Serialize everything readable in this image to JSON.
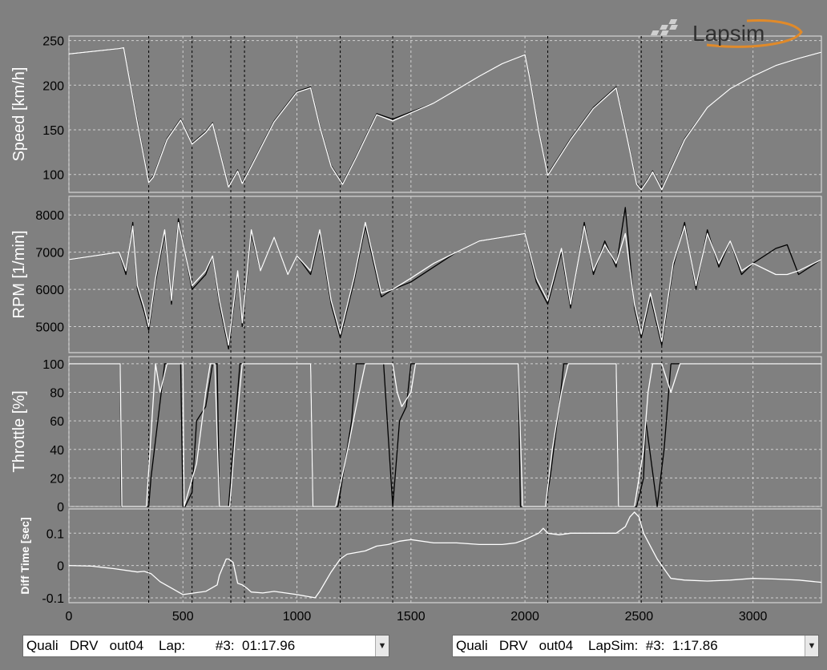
{
  "logo": {
    "text": "Lapsim"
  },
  "chart_data": {
    "type": "line",
    "xlim": [
      0,
      3300
    ],
    "xticks": [
      0,
      500,
      1000,
      1500,
      2000,
      2500,
      3000
    ],
    "vlines": [
      350,
      540,
      710,
      770,
      1190,
      1420,
      2100,
      2510,
      2600
    ],
    "panels": [
      {
        "ylabel": "Speed [km/h]",
        "ylim": [
          80,
          255
        ],
        "yticks": [
          100,
          150,
          200,
          250
        ],
        "series": [
          {
            "color": "#000000",
            "x": [
              0,
              220,
              240,
              300,
              350,
              370,
              430,
              490,
              540,
              600,
              630,
              700,
              740,
              760,
              800,
              900,
              1000,
              1060,
              1100,
              1150,
              1200,
              1260,
              1350,
              1420,
              1500,
              1600,
              1700,
              1800,
              1900,
              2000,
              2020,
              2060,
              2100,
              2200,
              2300,
              2400,
              2450,
              2490,
              2510,
              2540,
              2560,
              2600,
              2700,
              2800,
              2900,
              3000,
              3100,
              3200,
              3300
            ],
            "y": [
              235,
              241,
              242,
              160,
              92,
              98,
              140,
              162,
              135,
              148,
              158,
              87,
              105,
              91,
              110,
              160,
              193,
              198,
              155,
              110,
              90,
              120,
              168,
              162,
              170,
              180,
              195,
              210,
              224,
              234,
              210,
              150,
              100,
              140,
              175,
              198,
              140,
              90,
              84,
              95,
              104,
              84,
              140,
              175,
              196,
              210,
              222,
              230,
              237
            ]
          },
          {
            "color": "#ffffff",
            "x": [
              0,
              220,
              240,
              300,
              350,
              370,
              430,
              490,
              540,
              600,
              630,
              700,
              740,
              760,
              800,
              900,
              1000,
              1060,
              1100,
              1150,
              1200,
              1260,
              1350,
              1420,
              1500,
              1600,
              1700,
              1800,
              1900,
              2000,
              2020,
              2060,
              2100,
              2200,
              2300,
              2400,
              2450,
              2490,
              2510,
              2540,
              2560,
              2600,
              2700,
              2800,
              2900,
              3000,
              3100,
              3200,
              3300
            ],
            "y": [
              235,
              241,
              242,
              158,
              91,
              97,
              139,
              161,
              134,
              147,
              157,
              86,
              104,
              90,
              109,
              159,
              192,
              197,
              154,
              109,
              89,
              119,
              167,
              160,
              169,
              180,
              195,
              210,
              224,
              234,
              209,
              149,
              99,
              139,
              174,
              197,
              139,
              89,
              83,
              94,
              103,
              83,
              139,
              175,
              196,
              210,
              222,
              230,
              237
            ]
          }
        ]
      },
      {
        "ylabel": "RPM [1/min]",
        "ylim": [
          4300,
          8500
        ],
        "yticks": [
          5000,
          6000,
          7000,
          8000
        ],
        "series": [
          {
            "color": "#000000",
            "x": [
              0,
              220,
              250,
              280,
              300,
              330,
              350,
              380,
              420,
              450,
              480,
              540,
              600,
              630,
              660,
              700,
              740,
              760,
              800,
              840,
              900,
              960,
              1000,
              1060,
              1100,
              1150,
              1190,
              1250,
              1300,
              1370,
              1420,
              1500,
              1600,
              1700,
              1800,
              1900,
              2000,
              2050,
              2100,
              2160,
              2200,
              2260,
              2300,
              2350,
              2400,
              2440,
              2480,
              2510,
              2550,
              2600,
              2650,
              2700,
              2750,
              2800,
              2850,
              2900,
              2950,
              3000,
              3100,
              3150,
              3200,
              3300
            ],
            "y": [
              6800,
              7000,
              6400,
              7800,
              6000,
              5400,
              4900,
              6200,
              7500,
              5600,
              7900,
              6000,
              6400,
              6900,
              5600,
              4400,
              6400,
              5000,
              7500,
              6500,
              7400,
              6400,
              6900,
              6400,
              7500,
              5600,
              4700,
              6200,
              7700,
              5800,
              6000,
              6200,
              6600,
              7000,
              7300,
              7400,
              7500,
              6200,
              5600,
              7000,
              5500,
              7800,
              6400,
              7300,
              6600,
              8200,
              5500,
              4700,
              5800,
              4500,
              6600,
              7800,
              6000,
              7600,
              6600,
              7300,
              6400,
              6700,
              7100,
              7200,
              6400,
              6800
            ]
          },
          {
            "color": "#ffffff",
            "x": [
              0,
              220,
              250,
              280,
              300,
              330,
              350,
              380,
              420,
              450,
              480,
              540,
              600,
              630,
              660,
              700,
              740,
              760,
              800,
              840,
              900,
              960,
              1000,
              1060,
              1100,
              1150,
              1190,
              1250,
              1300,
              1370,
              1420,
              1500,
              1600,
              1700,
              1800,
              1900,
              2000,
              2050,
              2100,
              2160,
              2200,
              2260,
              2300,
              2350,
              2400,
              2440,
              2480,
              2510,
              2550,
              2600,
              2650,
              2700,
              2750,
              2800,
              2850,
              2900,
              2950,
              3000,
              3100,
              3150,
              3200,
              3300
            ],
            "y": [
              6800,
              7000,
              6500,
              7700,
              6100,
              5500,
              5000,
              6300,
              7600,
              5700,
              7800,
              6100,
              6500,
              6900,
              5700,
              4500,
              6500,
              5100,
              7600,
              6500,
              7400,
              6400,
              6900,
              6500,
              7600,
              5700,
              4800,
              6300,
              7800,
              5900,
              6000,
              6300,
              6700,
              7000,
              7300,
              7400,
              7500,
              6300,
              5700,
              7100,
              5600,
              7700,
              6500,
              7200,
              6700,
              7500,
              5600,
              4800,
              5900,
              4600,
              6700,
              7700,
              6100,
              7500,
              6700,
              7300,
              6500,
              6700,
              6400,
              6400,
              6500,
              6800
            ]
          }
        ]
      },
      {
        "ylabel": "Throttle [%]",
        "ylim": [
          0,
          105
        ],
        "yticks": [
          0,
          20,
          40,
          60,
          80,
          100
        ],
        "series": [
          {
            "color": "#000000",
            "x": [
              0,
              225,
              230,
              350,
              360,
              420,
              450,
              490,
              500,
              510,
              540,
              560,
              600,
              630,
              650,
              660,
              700,
              720,
              750,
              790,
              800,
              830,
              860,
              1000,
              1060,
              1070,
              1180,
              1200,
              1240,
              1260,
              1300,
              1320,
              1380,
              1420,
              1450,
              1480,
              1500,
              1700,
              1900,
              1970,
              1980,
              2090,
              2110,
              2150,
              2170,
              2200,
              2400,
              2410,
              2490,
              2520,
              2530,
              2580,
              2610,
              2640,
              2650,
              2660,
              2700,
              3300
            ],
            "y": [
              100,
              100,
              0,
              0,
              20,
              100,
              100,
              100,
              0,
              0,
              10,
              60,
              70,
              100,
              100,
              0,
              0,
              40,
              100,
              100,
              100,
              100,
              100,
              100,
              100,
              0,
              0,
              20,
              60,
              100,
              100,
              100,
              100,
              0,
              60,
              70,
              100,
              100,
              100,
              100,
              0,
              0,
              20,
              70,
              100,
              100,
              100,
              0,
              0,
              20,
              60,
              0,
              40,
              100,
              100,
              100,
              100,
              100
            ]
          },
          {
            "color": "#ffffff",
            "x": [
              0,
              225,
              232,
              340,
              360,
              380,
              400,
              430,
              460,
              500,
              505,
              560,
              600,
              620,
              640,
              660,
              705,
              730,
              760,
              790,
              820,
              900,
              1000,
              1060,
              1070,
              1170,
              1210,
              1260,
              1300,
              1320,
              1360,
              1420,
              1440,
              1460,
              1500,
              1520,
              1600,
              1800,
              1970,
              1990,
              2090,
              2120,
              2160,
              2190,
              2300,
              2400,
              2410,
              2480,
              2520,
              2540,
              2560,
              2600,
              2640,
              2660,
              2680,
              2700,
              3300
            ],
            "y": [
              100,
              100,
              0,
              0,
              50,
              100,
              80,
              100,
              100,
              100,
              0,
              30,
              80,
              100,
              100,
              0,
              0,
              50,
              100,
              100,
              100,
              100,
              100,
              100,
              0,
              0,
              30,
              70,
              100,
              100,
              100,
              100,
              80,
              70,
              80,
              100,
              100,
              100,
              100,
              0,
              0,
              40,
              80,
              100,
              100,
              100,
              0,
              0,
              40,
              80,
              100,
              100,
              80,
              90,
              100,
              100,
              100
            ]
          }
        ]
      },
      {
        "ylabel": "Diff Time [sec]",
        "ylim": [
          -0.115,
          0.175
        ],
        "yticks": [
          -0.1,
          0,
          0.1
        ],
        "yticklabels": [
          "-0.1",
          "0",
          "0.1"
        ],
        "series": [
          {
            "color": "#ffffff",
            "x": [
              0,
              100,
              200,
              300,
              330,
              360,
              400,
              450,
              500,
              550,
              600,
              650,
              660,
              690,
              700,
              720,
              740,
              760,
              780,
              800,
              850,
              900,
              950,
              1000,
              1080,
              1100,
              1150,
              1190,
              1220,
              1300,
              1350,
              1400,
              1450,
              1500,
              1600,
              1700,
              1800,
              1900,
              1960,
              2000,
              2060,
              2080,
              2100,
              2150,
              2200,
              2300,
              2400,
              2440,
              2460,
              2480,
              2500,
              2520,
              2550,
              2580,
              2600,
              2620,
              2640,
              2700,
              2800,
              2900,
              3000,
              3100,
              3200,
              3300
            ],
            "y": [
              0,
              -0.002,
              -0.01,
              -0.02,
              -0.018,
              -0.025,
              -0.05,
              -0.07,
              -0.09,
              -0.085,
              -0.08,
              -0.06,
              -0.03,
              0.02,
              0.02,
              0.01,
              -0.055,
              -0.06,
              -0.07,
              -0.082,
              -0.085,
              -0.08,
              -0.085,
              -0.09,
              -0.1,
              -0.08,
              -0.02,
              0.02,
              0.035,
              0.045,
              0.06,
              0.065,
              0.075,
              0.08,
              0.07,
              0.07,
              0.065,
              0.065,
              0.07,
              0.08,
              0.1,
              0.115,
              0.1,
              0.095,
              0.1,
              0.1,
              0.1,
              0.12,
              0.15,
              0.165,
              0.15,
              0.1,
              0.06,
              0.02,
              0,
              -0.02,
              -0.04,
              -0.045,
              -0.048,
              -0.045,
              -0.04,
              -0.042,
              -0.045,
              -0.052
            ]
          }
        ]
      }
    ]
  },
  "selectors": [
    {
      "text": "Quali   DRV   out04    Lap:        #3:  01:17.96"
    },
    {
      "text": "Quali   DRV   out04    LapSim:  #3:  1:17.86"
    }
  ]
}
